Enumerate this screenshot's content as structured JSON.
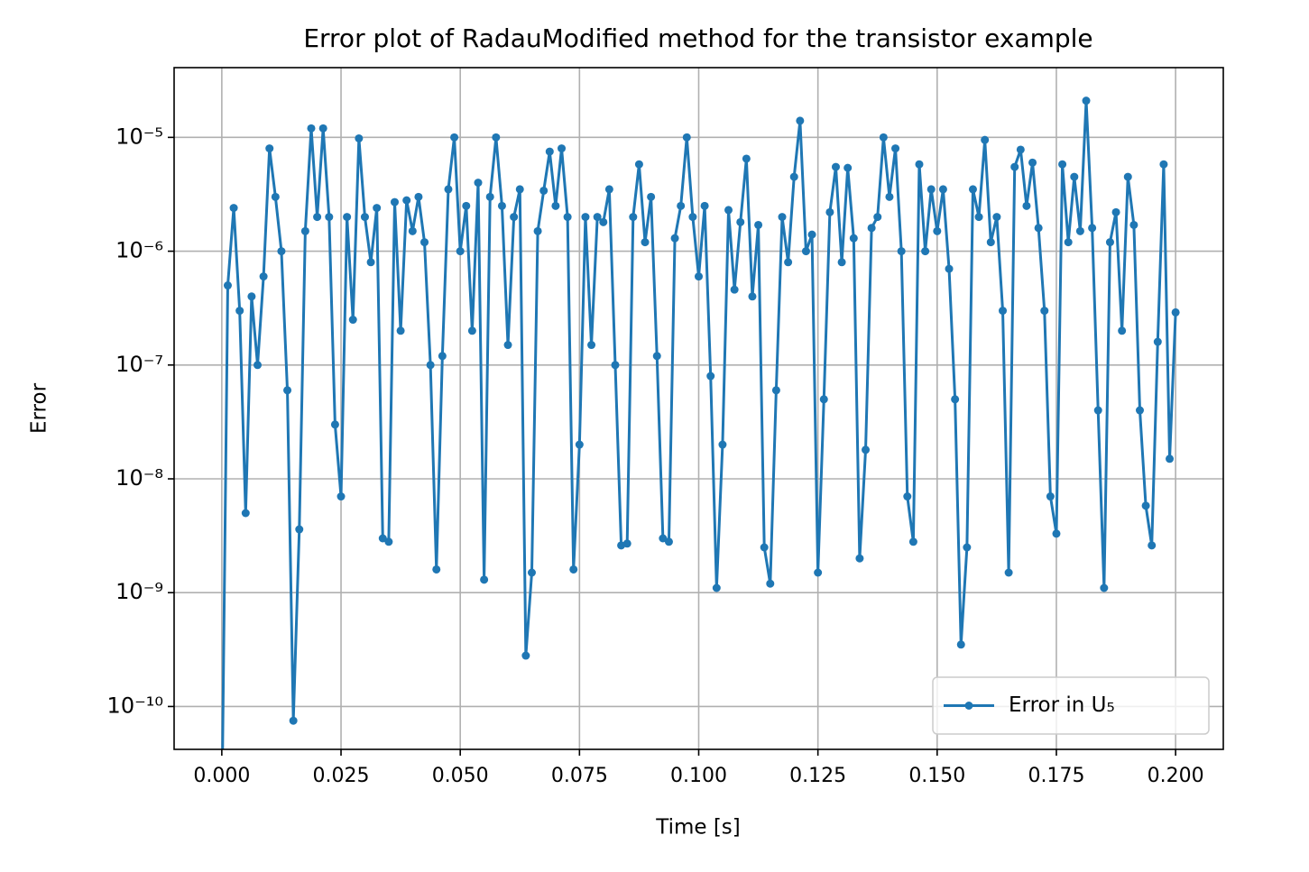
{
  "chart_data": {
    "type": "line",
    "title": "Error plot of RadauModified method for the transistor example",
    "x_label": "Time [s]",
    "y_label": "Error",
    "xlim": [
      -0.01,
      0.21
    ],
    "xticks": [
      {
        "value": 0,
        "label": "0.000"
      },
      0.025,
      {
        "value": 0.05,
        "label": "0.050"
      },
      0.075,
      {
        "value": 0.1,
        "label": "0.100"
      },
      0.125,
      {
        "value": 0.15,
        "label": "0.150"
      },
      0.175,
      {
        "value": 0.2,
        "label": "0.200"
      }
    ],
    "ylim": [
      4.2e-11,
      4.1e-05
    ],
    "y_scale": "log",
    "yticks": [
      {
        "value": 1e-10,
        "label": "10⁻¹⁰"
      },
      {
        "value": 1e-09,
        "label": "10⁻⁹"
      },
      {
        "value": 1e-08,
        "label": "10⁻⁸"
      },
      {
        "value": 1e-07,
        "label": "10⁻⁷"
      },
      {
        "value": 1e-06,
        "label": "10⁻⁶"
      },
      {
        "value": 1e-05,
        "label": "10⁻⁵"
      }
    ],
    "grid": true,
    "legend_loc": "lower right",
    "x": [
      0,
      0.00125,
      0.0025,
      0.00375,
      0.005,
      0.00625,
      0.0075,
      0.00875,
      0.01,
      0.01125,
      0.0125,
      0.01375,
      0.015,
      0.01625,
      0.0175,
      0.01875,
      0.02,
      0.02125,
      0.0225,
      0.02375,
      0.025,
      0.02625,
      0.0275,
      0.02875,
      0.03,
      0.03125,
      0.0325,
      0.03375,
      0.035,
      0.03625,
      0.0375,
      0.03875,
      0.04,
      0.04125,
      0.0425,
      0.04375,
      0.045,
      0.04625,
      0.0475,
      0.04875,
      0.05,
      0.05125,
      0.0525,
      0.05375,
      0.055,
      0.05625,
      0.0575,
      0.05875,
      0.06,
      0.06125,
      0.0625,
      0.06375,
      0.065,
      0.06625,
      0.0675,
      0.06875,
      0.07,
      0.07125,
      0.0725,
      0.07375,
      0.075,
      0.07625,
      0.0775,
      0.07875,
      0.08,
      0.08125,
      0.0825,
      0.08375,
      0.085,
      0.08625,
      0.0875,
      0.08875,
      0.09,
      0.09125,
      0.0925,
      0.09375,
      0.095,
      0.09625,
      0.0975,
      0.09875,
      0.1,
      0.10125,
      0.1025,
      0.10375,
      0.105,
      0.10625,
      0.1075,
      0.10875,
      0.11,
      0.11125,
      0.1125,
      0.11375,
      0.115,
      0.11625,
      0.1175,
      0.11875,
      0.12,
      0.12125,
      0.1225,
      0.12375,
      0.125,
      0.12625,
      0.1275,
      0.12875,
      0.13,
      0.13125,
      0.1325,
      0.13375,
      0.135,
      0.13625,
      0.1375,
      0.13875,
      0.14,
      0.14125,
      0.1425,
      0.14375,
      0.145,
      0.14625,
      0.1475,
      0.14875,
      0.15,
      0.15125,
      0.1525,
      0.15375,
      0.155,
      0.15625,
      0.1575,
      0.15875,
      0.16,
      0.16125,
      0.1625,
      0.16375,
      0.165,
      0.16625,
      0.1675,
      0.16875,
      0.17,
      0.17125,
      0.1725,
      0.17375,
      0.175,
      0.17625,
      0.1775,
      0.17875,
      0.18,
      0.18125,
      0.1825,
      0.18375,
      0.185,
      0.18625,
      0.1875,
      0.18875,
      0.19,
      0.19125,
      0.1925,
      0.19375,
      0.195,
      0.19625,
      0.1975,
      0.19875,
      0.2
    ],
    "series": [
      {
        "name": "Error in U₅",
        "color": "#1f77b4",
        "values": [
          1e-11,
          5e-07,
          2.4e-06,
          3e-07,
          5e-09,
          4e-07,
          1e-07,
          6e-07,
          8e-06,
          3e-06,
          1e-06,
          6e-08,
          7.5e-11,
          3.6e-09,
          1.5e-06,
          1.2e-05,
          2e-06,
          1.2e-05,
          2e-06,
          3e-08,
          7e-09,
          2e-06,
          2.5e-07,
          9.8e-06,
          2e-06,
          8e-07,
          2.4e-06,
          3e-09,
          2.8e-09,
          2.7e-06,
          2e-07,
          2.8e-06,
          1.5e-06,
          3e-06,
          1.2e-06,
          1e-07,
          1.6e-09,
          1.2e-07,
          3.5e-06,
          1e-05,
          1e-06,
          2.5e-06,
          2e-07,
          4e-06,
          1.3e-09,
          3e-06,
          1e-05,
          2.5e-06,
          1.5e-07,
          2e-06,
          3.5e-06,
          2.8e-10,
          1.5e-09,
          1.5e-06,
          3.4e-06,
          7.5e-06,
          2.5e-06,
          8e-06,
          2e-06,
          1.6e-09,
          2e-08,
          2e-06,
          1.5e-07,
          2e-06,
          1.8e-06,
          3.5e-06,
          1e-07,
          2.6e-09,
          2.7e-09,
          2e-06,
          5.8e-06,
          1.2e-06,
          3e-06,
          1.2e-07,
          3e-09,
          2.8e-09,
          1.3e-06,
          2.5e-06,
          1e-05,
          2e-06,
          6e-07,
          2.5e-06,
          8e-08,
          1.1e-09,
          2e-08,
          2.3e-06,
          4.6e-07,
          1.8e-06,
          6.5e-06,
          4e-07,
          1.7e-06,
          2.5e-09,
          1.2e-09,
          6e-08,
          2e-06,
          8e-07,
          4.5e-06,
          1.4e-05,
          1e-06,
          1.4e-06,
          1.5e-09,
          5e-08,
          2.2e-06,
          5.5e-06,
          8e-07,
          5.4e-06,
          1.3e-06,
          2e-09,
          1.8e-08,
          1.6e-06,
          2e-06,
          1e-05,
          3e-06,
          8e-06,
          1e-06,
          7e-09,
          2.8e-09,
          5.8e-06,
          1e-06,
          3.5e-06,
          1.5e-06,
          3.5e-06,
          7e-07,
          5e-08,
          3.5e-10,
          2.5e-09,
          3.5e-06,
          2e-06,
          9.5e-06,
          1.2e-06,
          2e-06,
          3e-07,
          1.5e-09,
          5.5e-06,
          7.8e-06,
          2.5e-06,
          6e-06,
          1.6e-06,
          3e-07,
          7e-09,
          3.3e-09,
          5.8e-06,
          1.2e-06,
          4.5e-06,
          1.5e-06,
          2.1e-05,
          1.6e-06,
          4e-08,
          1.1e-09,
          1.2e-06,
          2.2e-06,
          2e-07,
          4.5e-06,
          1.7e-06,
          4e-08,
          5.8e-09,
          2.6e-09,
          1.6e-07,
          5.8e-06,
          1.5e-08,
          2.9e-07
        ]
      }
    ]
  }
}
